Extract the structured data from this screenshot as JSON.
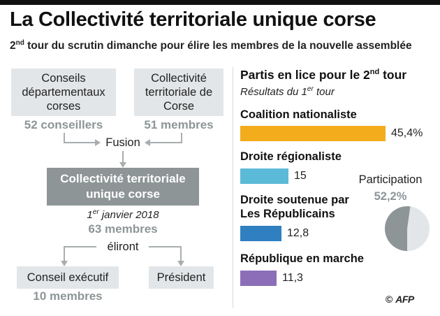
{
  "title": "La Collectivité territoriale unique corse",
  "subtitle": {
    "pre": "2",
    "sup": "nd",
    "post": " tour du scrutin dimanche pour élire les membres de la nouvelle assemblée"
  },
  "left": {
    "box1": {
      "label": "Conseils départementaux corses",
      "count": "52 conseillers"
    },
    "box2": {
      "label": "Collectivité territoriale de Corse",
      "count": "51 membres"
    },
    "fusion": "Fusion",
    "merged": {
      "label": "Collectivité territoriale unique corse"
    },
    "date_day": "1",
    "date_sup": "er",
    "date_rest": " janvier 2018",
    "members": "63 membres",
    "elect": "éliront",
    "conseil": {
      "label": "Conseil exécutif",
      "count": "10 membres"
    },
    "president": {
      "label": "Président"
    }
  },
  "chart_data": {
    "type": "bar",
    "title_pre": "Partis en lice pour le 2",
    "title_sup": "nd",
    "title_post": " tour",
    "subtitle_pre": "Résultats du 1",
    "subtitle_sup": "er",
    "subtitle_post": " tour",
    "categories": [
      "Coalition nationaliste",
      "Droite régionaliste",
      "Droite soutenue par Les Républicains",
      "République en marche"
    ],
    "values": [
      45.4,
      15,
      12.8,
      11.3
    ],
    "value_labels": [
      "45,4%",
      "15",
      "12,8",
      "11,3"
    ],
    "colors": [
      "#f2ac1c",
      "#5bbad8",
      "#2f7fc1",
      "#8c6eb8"
    ]
  },
  "participation": {
    "label": "Participation",
    "value_label": "52,2%",
    "value": 52.2,
    "colors": {
      "filled": "#8d9597",
      "rest": "#e3e6e8"
    }
  },
  "credit": {
    "symbol": "©",
    "agency": "AFP"
  }
}
